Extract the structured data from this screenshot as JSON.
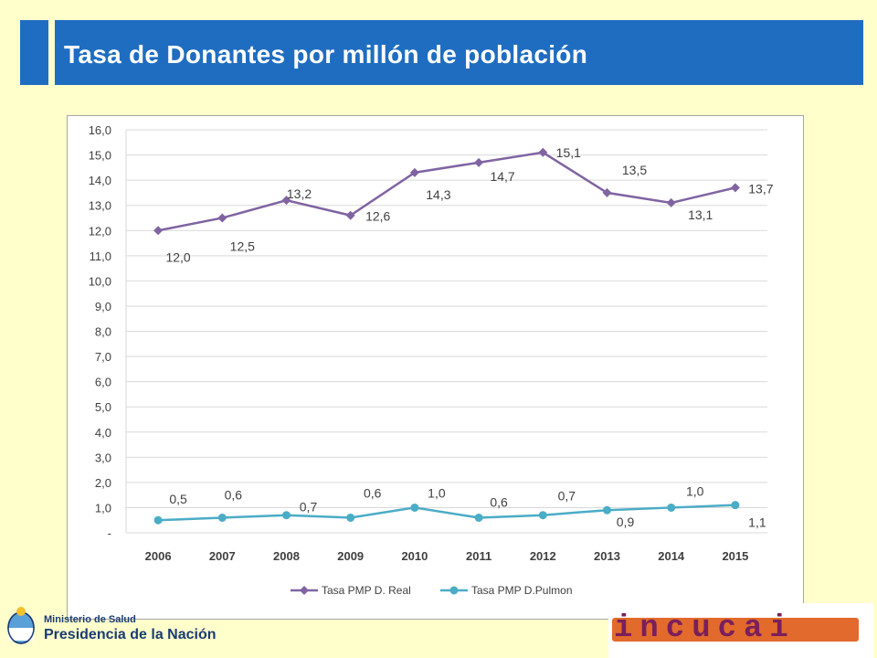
{
  "header": {
    "title": "Tasa de Donantes por millón de población"
  },
  "footer": {
    "ministry": "Ministerio de Salud",
    "presidency": "Presidencia de la Nación",
    "logo_text": "incucai"
  },
  "chart_data": {
    "type": "line",
    "title": "",
    "xlabel": "",
    "ylabel": "",
    "categories": [
      "2006",
      "2007",
      "2008",
      "2009",
      "2010",
      "2011",
      "2012",
      "2013",
      "2014",
      "2015"
    ],
    "y_ticks": [
      "16,0",
      "15,0",
      "14,0",
      "13,0",
      "12,0",
      "11,0",
      "10,0",
      "9,0",
      "8,0",
      "7,0",
      "6,0",
      "5,0",
      "4,0",
      "3,0",
      "2,0",
      "1,0",
      "-"
    ],
    "ylim": [
      0,
      16
    ],
    "grid": true,
    "legend_position": "bottom",
    "series": [
      {
        "name": "Tasa PMP D. Real",
        "color": "#8064a2",
        "marker": "diamond",
        "values": [
          12.0,
          12.5,
          13.2,
          12.6,
          14.3,
          14.7,
          15.1,
          13.5,
          13.1,
          13.7
        ],
        "labels": [
          "12,0",
          "12,5",
          "13,2",
          "12,6",
          "14,3",
          "14,7",
          "15,1",
          "13,5",
          "13,1",
          "13,7"
        ]
      },
      {
        "name": "Tasa PMP D.Pulmon",
        "color": "#4bacc6",
        "marker": "circle",
        "values": [
          0.5,
          0.6,
          0.7,
          0.6,
          1.0,
          0.6,
          0.7,
          0.9,
          1.0,
          1.1
        ],
        "labels": [
          "0,5",
          "0,6",
          "0,7",
          "0,6",
          "1,0",
          "0,6",
          "0,7",
          "0,9",
          "1,0",
          "1,1"
        ]
      }
    ]
  }
}
